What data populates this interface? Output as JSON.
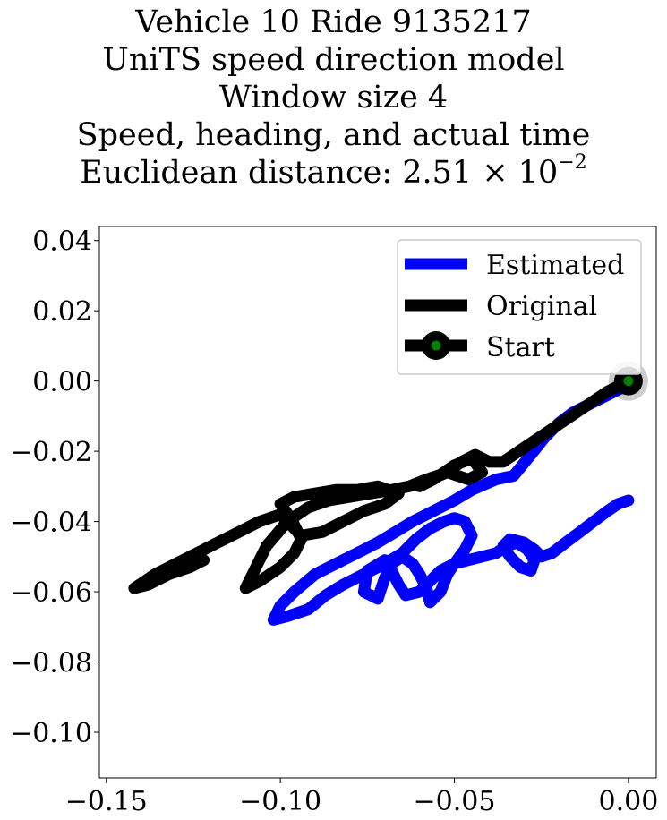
{
  "chart_data": {
    "type": "line",
    "title_lines": [
      "Vehicle 10 Ride 9135217",
      "UniTS speed direction model",
      "Window size 4",
      "Speed, heading, and actual time"
    ],
    "distance_label": "Euclidean distance: ",
    "distance_mantissa": "2.51",
    "distance_times": "×",
    "distance_base": "10",
    "distance_exponent": "−2",
    "xlim": [
      -0.152,
      0.008
    ],
    "ylim": [
      -0.113,
      0.044
    ],
    "x_ticks": [
      -0.15,
      -0.1,
      -0.05,
      0.0
    ],
    "x_tick_labels": [
      "−0.15",
      "−0.10",
      "−0.05",
      "0.00"
    ],
    "y_ticks": [
      0.04,
      0.02,
      0.0,
      -0.02,
      -0.04,
      -0.06,
      -0.08,
      -0.1
    ],
    "y_tick_labels": [
      "0.04",
      "0.02",
      "0.00",
      "−0.02",
      "−0.04",
      "−0.06",
      "−0.08",
      "−0.10"
    ],
    "grid": false,
    "legend_position": "top-right",
    "colors": {
      "estimated": "#0000ff",
      "original": "#000000",
      "start_marker": "#008000"
    },
    "series": [
      {
        "name": "Estimated",
        "x": [
          0.0,
          -0.004,
          -0.01,
          -0.016,
          -0.02,
          -0.024,
          -0.028,
          -0.033,
          -0.038,
          -0.045,
          -0.05,
          -0.056,
          -0.062,
          -0.067,
          -0.072,
          -0.078,
          -0.084,
          -0.09,
          -0.096,
          -0.1,
          -0.102,
          -0.098,
          -0.092,
          -0.087,
          -0.082,
          -0.076,
          -0.07,
          -0.065,
          -0.061,
          -0.057,
          -0.053,
          -0.05,
          -0.047,
          -0.045,
          -0.047,
          -0.05,
          -0.054,
          -0.057,
          -0.06,
          -0.064,
          -0.066,
          -0.068,
          -0.07,
          -0.075,
          -0.076,
          -0.072,
          -0.07,
          -0.068,
          -0.065,
          -0.062,
          -0.06,
          -0.058,
          -0.057,
          -0.054,
          -0.052,
          -0.05,
          -0.046,
          -0.042,
          -0.038,
          -0.035,
          -0.032,
          -0.029,
          -0.027,
          -0.028,
          -0.031,
          -0.034,
          -0.036,
          -0.034,
          -0.03,
          -0.027,
          -0.025,
          -0.022,
          -0.018,
          -0.014,
          -0.01,
          -0.006,
          -0.003,
          0.0
        ],
        "y": [
          -0.001,
          -0.003,
          -0.006,
          -0.009,
          -0.012,
          -0.016,
          -0.021,
          -0.027,
          -0.028,
          -0.031,
          -0.034,
          -0.037,
          -0.04,
          -0.043,
          -0.046,
          -0.049,
          -0.052,
          -0.055,
          -0.06,
          -0.064,
          -0.068,
          -0.067,
          -0.065,
          -0.061,
          -0.058,
          -0.055,
          -0.052,
          -0.049,
          -0.045,
          -0.042,
          -0.04,
          -0.039,
          -0.04,
          -0.044,
          -0.048,
          -0.052,
          -0.054,
          -0.057,
          -0.06,
          -0.061,
          -0.058,
          -0.054,
          -0.051,
          -0.054,
          -0.06,
          -0.062,
          -0.056,
          -0.052,
          -0.05,
          -0.052,
          -0.055,
          -0.059,
          -0.063,
          -0.06,
          -0.055,
          -0.052,
          -0.051,
          -0.05,
          -0.049,
          -0.047,
          -0.046,
          -0.048,
          -0.051,
          -0.054,
          -0.053,
          -0.05,
          -0.047,
          -0.045,
          -0.046,
          -0.048,
          -0.05,
          -0.049,
          -0.046,
          -0.043,
          -0.04,
          -0.037,
          -0.035,
          -0.034
        ]
      },
      {
        "name": "Original",
        "x": [
          0.0,
          -0.006,
          -0.012,
          -0.018,
          -0.024,
          -0.03,
          -0.036,
          -0.04,
          -0.044,
          -0.048,
          -0.052,
          -0.057,
          -0.06,
          -0.056,
          -0.05,
          -0.045,
          -0.042,
          -0.046,
          -0.052,
          -0.058,
          -0.063,
          -0.068,
          -0.074,
          -0.08,
          -0.086,
          -0.092,
          -0.098,
          -0.104,
          -0.11,
          -0.106,
          -0.1,
          -0.096,
          -0.094,
          -0.097,
          -0.1,
          -0.096,
          -0.09,
          -0.084,
          -0.078,
          -0.072,
          -0.066,
          -0.07,
          -0.076,
          -0.082,
          -0.088,
          -0.094,
          -0.1,
          -0.106,
          -0.112,
          -0.118,
          -0.124,
          -0.13,
          -0.136,
          -0.142,
          -0.138,
          -0.132,
          -0.126,
          -0.122
        ],
        "y": [
          0.0,
          -0.003,
          -0.007,
          -0.011,
          -0.015,
          -0.019,
          -0.023,
          -0.023,
          -0.021,
          -0.023,
          -0.026,
          -0.028,
          -0.03,
          -0.028,
          -0.024,
          -0.022,
          -0.026,
          -0.028,
          -0.026,
          -0.028,
          -0.03,
          -0.031,
          -0.032,
          -0.033,
          -0.034,
          -0.036,
          -0.04,
          -0.047,
          -0.059,
          -0.057,
          -0.053,
          -0.049,
          -0.045,
          -0.039,
          -0.035,
          -0.033,
          -0.032,
          -0.031,
          -0.031,
          -0.03,
          -0.032,
          -0.035,
          -0.037,
          -0.04,
          -0.043,
          -0.044,
          -0.038,
          -0.04,
          -0.043,
          -0.046,
          -0.049,
          -0.052,
          -0.055,
          -0.059,
          -0.058,
          -0.055,
          -0.053,
          -0.051
        ]
      }
    ],
    "start": {
      "name": "Start",
      "x": 0.0,
      "y": 0.0
    }
  }
}
